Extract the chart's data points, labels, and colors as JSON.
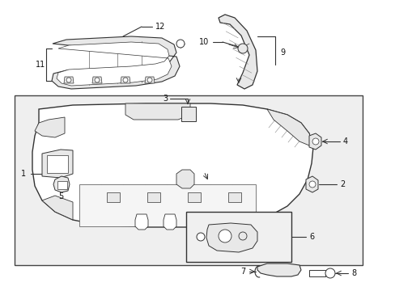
{
  "bg_color": "#ffffff",
  "fig_width": 4.89,
  "fig_height": 3.6,
  "dpi": 100,
  "lc": "#333333",
  "fill_light": "#e8e8e8",
  "fill_white": "#ffffff",
  "fill_panel": "#d8d8d8"
}
